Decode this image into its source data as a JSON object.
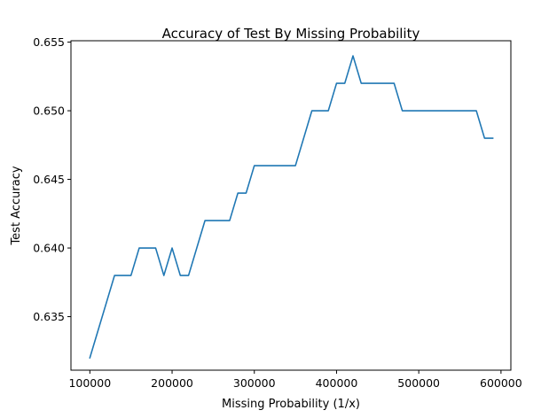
{
  "chart_data": {
    "type": "line",
    "title": "Accuracy of Test By Missing Probability",
    "xlabel": "Missing Probability (1/x)",
    "ylabel": "Test Accuracy",
    "xlim": [
      77000,
      612000
    ],
    "ylim": [
      0.6311,
      0.6551
    ],
    "xticks": [
      100000,
      200000,
      300000,
      400000,
      500000,
      600000
    ],
    "xtick_labels": [
      "100000",
      "200000",
      "300000",
      "400000",
      "500000",
      "600000"
    ],
    "yticks": [
      0.635,
      0.64,
      0.645,
      0.65,
      0.655
    ],
    "ytick_labels": [
      "0.635",
      "0.640",
      "0.645",
      "0.650",
      "0.655"
    ],
    "grid": false,
    "line_color": "#1f77b4",
    "series": [
      {
        "x": [
          100000,
          110000,
          120000,
          130000,
          140000,
          150000,
          160000,
          170000,
          180000,
          190000,
          200000,
          210000,
          220000,
          230000,
          240000,
          250000,
          260000,
          270000,
          280000,
          290000,
          300000,
          310000,
          320000,
          330000,
          340000,
          350000,
          360000,
          370000,
          380000,
          390000,
          400000,
          410000,
          420000,
          430000,
          440000,
          450000,
          460000,
          470000,
          480000,
          490000,
          500000,
          510000,
          520000,
          530000,
          540000,
          550000,
          560000,
          570000,
          580000,
          590000
        ],
        "y": [
          0.632,
          0.634,
          0.636,
          0.638,
          0.638,
          0.638,
          0.64,
          0.64,
          0.64,
          0.638,
          0.64,
          0.638,
          0.638,
          0.64,
          0.642,
          0.642,
          0.642,
          0.642,
          0.644,
          0.644,
          0.646,
          0.646,
          0.646,
          0.646,
          0.646,
          0.646,
          0.648,
          0.65,
          0.65,
          0.65,
          0.652,
          0.652,
          0.654,
          0.652,
          0.652,
          0.652,
          0.652,
          0.652,
          0.65,
          0.65,
          0.65,
          0.65,
          0.65,
          0.65,
          0.65,
          0.65,
          0.65,
          0.65,
          0.648,
          0.648
        ]
      }
    ]
  }
}
